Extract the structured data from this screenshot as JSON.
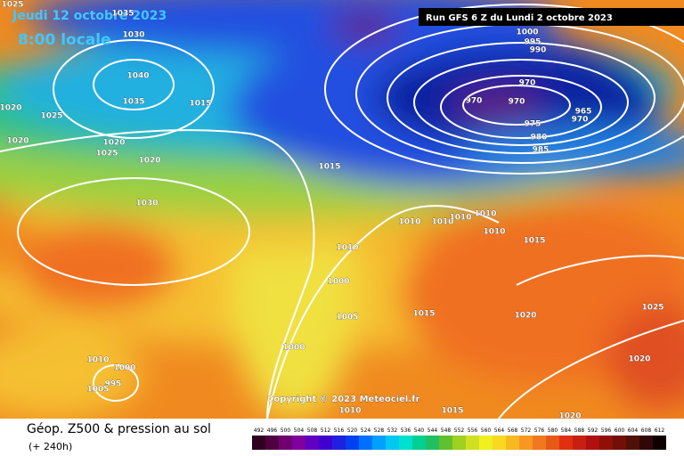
{
  "header": {
    "date": "Jeudi 12 octobre 2023",
    "time": "8:00 locale",
    "run": "Run GFS 6 Z du Lundi 2 octobre 2023"
  },
  "isobar_labels": [
    "1025",
    "1035",
    "1030",
    "1040",
    "1035",
    "1020",
    "1025",
    "1015",
    "1020",
    "1020",
    "1025",
    "1020",
    "1015",
    "1030",
    "1010",
    "1010",
    "1010",
    "1010",
    "1010",
    "1015",
    "1010",
    "1000",
    "1005",
    "1015",
    "1020",
    "1025",
    "1000",
    "1010",
    "1000",
    "995",
    "1005",
    "1010",
    "1015",
    "1020",
    "1020",
    "1000",
    "995",
    "990",
    "970",
    "970",
    "970",
    "965",
    "970",
    "975",
    "980",
    "985"
  ],
  "copyright": "Copyright © 2023 Meteociel.fr",
  "footer": {
    "title": "Géop. Z500 & pression au sol",
    "subtitle": "(+ 240h)"
  },
  "scale_labels": [
    "492",
    "496",
    "500",
    "504",
    "508",
    "512",
    "516",
    "520",
    "524",
    "528",
    "532",
    "536",
    "540",
    "544",
    "548",
    "552",
    "556",
    "560",
    "564",
    "568",
    "572",
    "576",
    "580",
    "584",
    "588",
    "592",
    "596",
    "600",
    "604",
    "608",
    "612"
  ]
}
